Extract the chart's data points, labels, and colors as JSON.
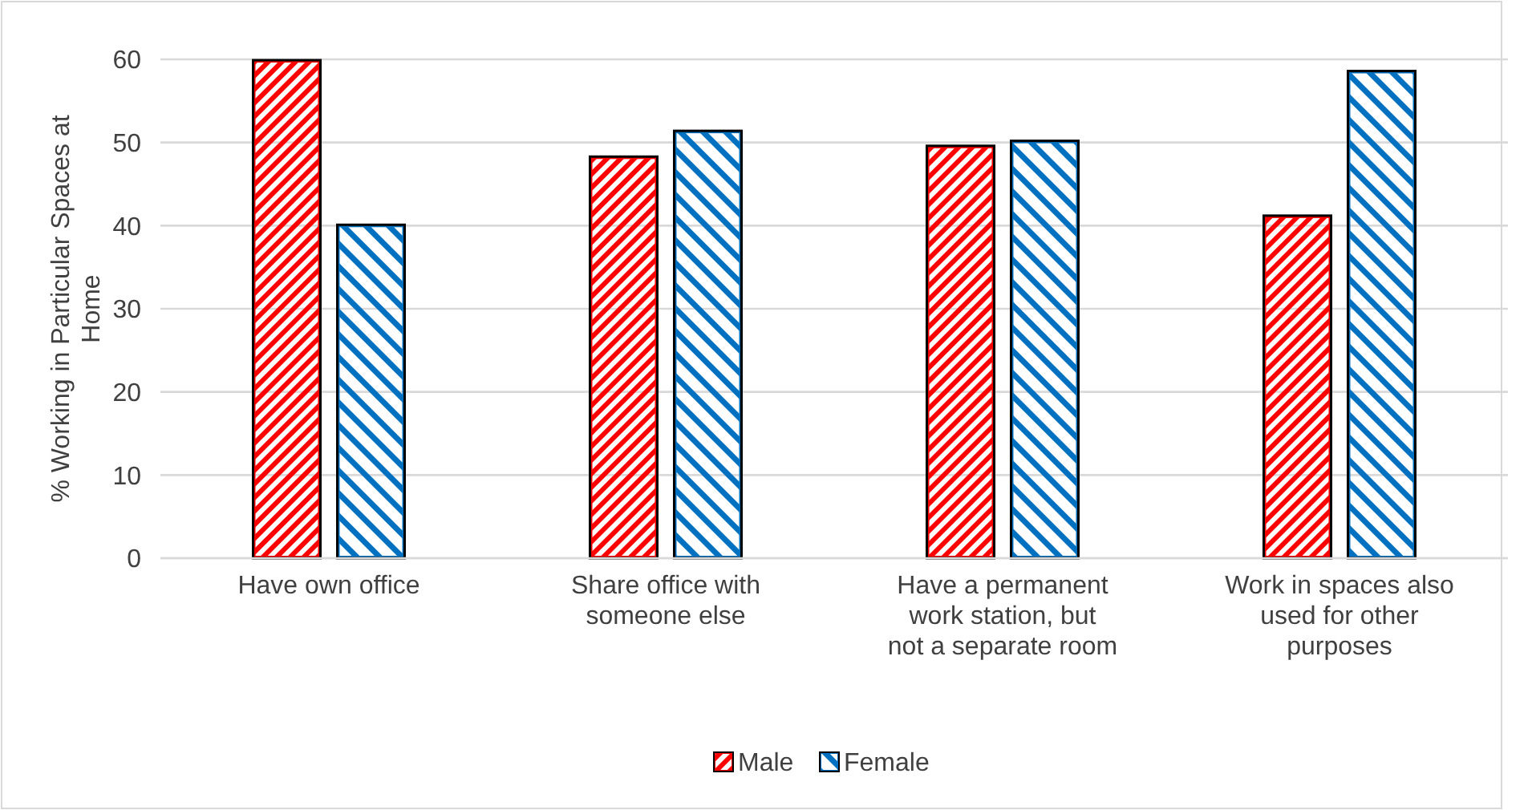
{
  "chart_data": {
    "type": "bar",
    "ylabel": "% Working in Particular Spaces at Home",
    "categories": [
      "Have own office",
      "Share office with someone else",
      "Have a permanent work station, but not a separate room",
      "Work in spaces also used for other purposes"
    ],
    "series": [
      {
        "name": "Male",
        "color": "#ff0000",
        "values": [
          59.9,
          48.3,
          49.6,
          41.2
        ]
      },
      {
        "name": "Female",
        "color": "#0070c0",
        "values": [
          40.1,
          51.4,
          50.2,
          58.6
        ]
      }
    ],
    "ylim": [
      0,
      60
    ],
    "yticks": [
      0,
      10,
      20,
      30,
      40,
      50,
      60
    ],
    "grid": "y",
    "legend": "bottom"
  }
}
